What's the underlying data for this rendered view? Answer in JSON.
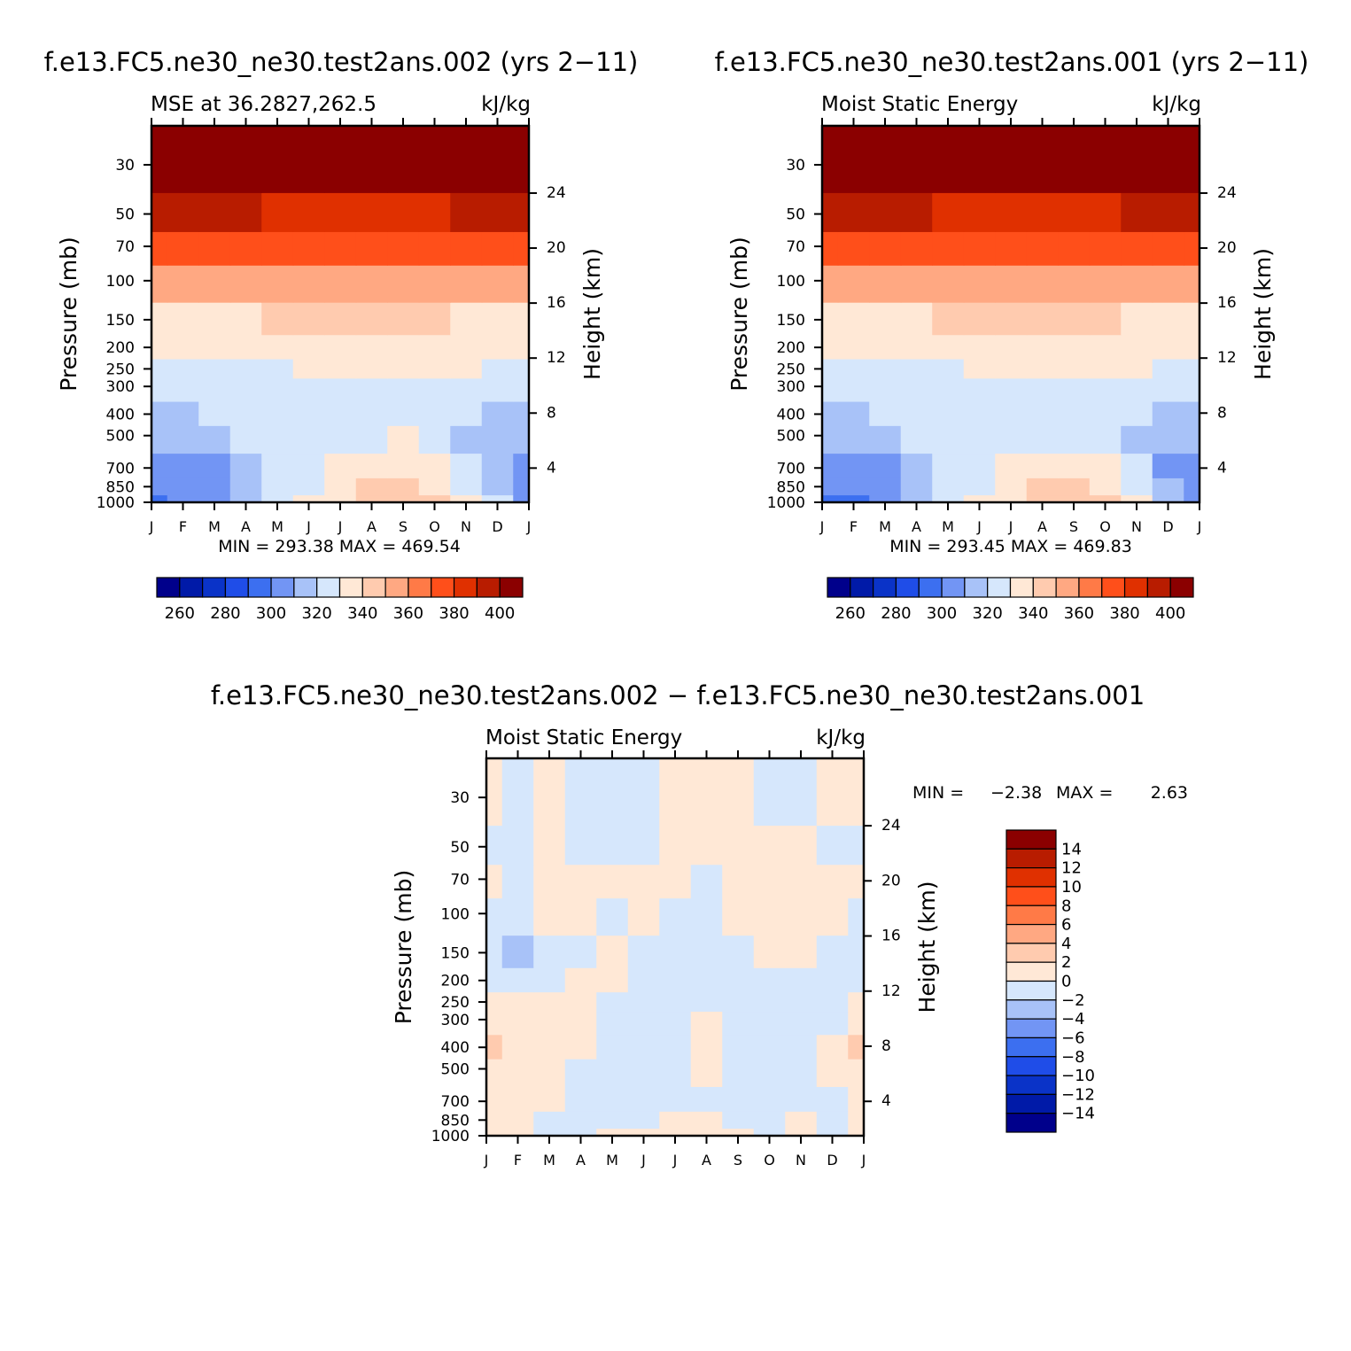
{
  "colors": {
    "mse_palette": [
      "#00008b",
      "#001aa8",
      "#0a33c8",
      "#1f4de8",
      "#3c6ff0",
      "#7295f4",
      "#a8c2f8",
      "#d6e7fc",
      "#ffe8d6",
      "#ffcbaf",
      "#ffa882",
      "#ff7a47",
      "#ff4f1a",
      "#e03000",
      "#b81c00",
      "#8b0000"
    ],
    "diff_palette": [
      "#00008b",
      "#001aa8",
      "#0a33c8",
      "#1f4de8",
      "#3c6ff0",
      "#7295f4",
      "#a8c2f8",
      "#d6e7fc",
      "#ffe8d6",
      "#ffcbaf",
      "#ffa882",
      "#ff7a47",
      "#ff4f1a",
      "#e03000",
      "#b81c00",
      "#8b0000"
    ]
  },
  "chart_data": [
    {
      "type": "heatmap",
      "title": "f.e13.FC5.ne30_ne30.test2ans.002 (yrs 2−11)",
      "subtitle_left": "MSE at 36.2827,262.5",
      "subtitle_right": "kJ/kg",
      "xlabel": "",
      "ylabel": "Pressure (mb)",
      "ylabel_right": "Height (km)",
      "x_ticklabels": [
        "J",
        "F",
        "M",
        "A",
        "M",
        "J",
        "J",
        "A",
        "S",
        "O",
        "N",
        "D",
        "J"
      ],
      "y_ticks": [
        30,
        50,
        70,
        100,
        150,
        200,
        250,
        300,
        400,
        500,
        700,
        850,
        1000
      ],
      "y_ticklabels": [
        "30",
        "50",
        "70",
        "100",
        "150",
        "200",
        "250",
        "300",
        "400",
        "500",
        "700",
        "850",
        "1000"
      ],
      "height_ticks": [
        4,
        8,
        12,
        16,
        20,
        24
      ],
      "height_ticklabels": [
        "4",
        "8",
        "12",
        "16",
        "20",
        "24"
      ],
      "ylim": [
        1000,
        20
      ],
      "min_max_text": "MIN = 293.38 MAX = 469.54",
      "min": 293.38,
      "max": 469.54,
      "colorbar": {
        "orientation": "horizontal",
        "levels": [
          260,
          270,
          280,
          290,
          300,
          310,
          320,
          330,
          340,
          350,
          360,
          370,
          380,
          390,
          400
        ],
        "labels": [
          "260",
          "280",
          "300",
          "320",
          "340",
          "360",
          "380",
          "400"
        ]
      },
      "months": [
        "J",
        "F",
        "M",
        "A",
        "M",
        "J",
        "J",
        "A",
        "S",
        "O",
        "N",
        "D",
        "J"
      ],
      "levels_mb": [
        1000,
        850,
        700,
        500,
        400,
        300,
        250,
        200,
        150,
        100,
        70,
        50,
        30,
        20
      ],
      "values": [
        [
          298,
          300,
          304,
          316,
          324,
          330,
          338,
          346,
          348,
          346,
          338,
          322,
          306,
          298
        ],
        [
          300,
          302,
          306,
          316,
          322,
          328,
          334,
          340,
          342,
          338,
          328,
          314,
          304,
          300
        ],
        [
          305,
          306,
          308,
          316,
          320,
          325,
          330,
          335,
          337,
          333,
          322,
          310,
          306,
          305
        ],
        [
          312,
          314,
          316,
          320,
          322,
          324,
          327,
          329,
          330,
          328,
          318,
          314,
          314,
          312
        ],
        [
          317,
          318,
          320,
          322,
          324,
          325,
          326,
          327,
          327,
          326,
          320,
          318,
          318,
          317
        ],
        [
          323,
          324,
          325,
          326,
          327,
          328,
          328,
          329,
          329,
          328,
          326,
          325,
          324,
          323
        ],
        [
          327,
          327,
          328,
          329,
          329,
          330,
          331,
          332,
          332,
          331,
          330,
          329,
          328,
          327
        ],
        [
          330,
          330,
          331,
          331,
          332,
          333,
          335,
          337,
          336,
          334,
          332,
          331,
          331,
          330
        ],
        [
          336,
          337,
          338,
          339,
          340,
          342,
          345,
          347,
          345,
          342,
          339,
          338,
          337,
          336
        ],
        [
          352,
          352,
          353,
          353,
          354,
          354,
          355,
          356,
          355,
          354,
          353,
          352,
          352,
          352
        ],
        [
          372,
          372,
          372,
          372,
          371,
          370,
          370,
          370,
          370,
          371,
          372,
          372,
          373,
          372
        ],
        [
          395,
          394,
          392,
          391,
          389,
          387,
          386,
          386,
          387,
          389,
          391,
          393,
          395,
          395
        ],
        [
          430,
          430,
          430,
          430,
          430,
          430,
          430,
          430,
          430,
          430,
          430,
          430,
          430,
          430
        ],
        [
          460,
          460,
          460,
          460,
          460,
          460,
          460,
          460,
          460,
          460,
          460,
          460,
          460,
          460
        ]
      ]
    },
    {
      "type": "heatmap",
      "title": "f.e13.FC5.ne30_ne30.test2ans.001 (yrs 2−11)",
      "subtitle_left": "Moist Static Energy",
      "subtitle_right": "kJ/kg",
      "xlabel": "",
      "ylabel": "Pressure (mb)",
      "ylabel_right": "Height (km)",
      "x_ticklabels": [
        "J",
        "F",
        "M",
        "A",
        "M",
        "J",
        "J",
        "A",
        "S",
        "O",
        "N",
        "D",
        "J"
      ],
      "y_ticks": [
        30,
        50,
        70,
        100,
        150,
        200,
        250,
        300,
        400,
        500,
        700,
        850,
        1000
      ],
      "y_ticklabels": [
        "30",
        "50",
        "70",
        "100",
        "150",
        "200",
        "250",
        "300",
        "400",
        "500",
        "700",
        "850",
        "1000"
      ],
      "height_ticks": [
        4,
        8,
        12,
        16,
        20,
        24
      ],
      "height_ticklabels": [
        "4",
        "8",
        "12",
        "16",
        "20",
        "24"
      ],
      "ylim": [
        1000,
        20
      ],
      "min_max_text": "MIN = 293.45 MAX = 469.83",
      "min": 293.45,
      "max": 469.83,
      "colorbar": {
        "orientation": "horizontal",
        "levels": [
          260,
          270,
          280,
          290,
          300,
          310,
          320,
          330,
          340,
          350,
          360,
          370,
          380,
          390,
          400
        ],
        "labels": [
          "260",
          "280",
          "300",
          "320",
          "340",
          "360",
          "380",
          "400"
        ]
      },
      "months": [
        "J",
        "F",
        "M",
        "A",
        "M",
        "J",
        "J",
        "A",
        "S",
        "O",
        "N",
        "D",
        "J"
      ],
      "levels_mb": [
        1000,
        850,
        700,
        500,
        400,
        300,
        250,
        200,
        150,
        100,
        70,
        50,
        30,
        20
      ],
      "values": [
        [
          298,
          299,
          302,
          316,
          324,
          330,
          338,
          345,
          347,
          345,
          334,
          318,
          304,
          298
        ],
        [
          300,
          302,
          306,
          316,
          322,
          328,
          334,
          340,
          341,
          337,
          326,
          312,
          304,
          300
        ],
        [
          305,
          306,
          308,
          316,
          320,
          325,
          330,
          335,
          336,
          332,
          320,
          309,
          306,
          305
        ],
        [
          312,
          314,
          316,
          320,
          322,
          324,
          327,
          329,
          329,
          327,
          317,
          313,
          313,
          312
        ],
        [
          317,
          318,
          320,
          322,
          324,
          325,
          326,
          327,
          327,
          326,
          320,
          318,
          318,
          317
        ],
        [
          323,
          324,
          325,
          326,
          327,
          328,
          328,
          329,
          329,
          328,
          326,
          325,
          324,
          323
        ],
        [
          327,
          327,
          328,
          329,
          329,
          330,
          331,
          332,
          332,
          331,
          330,
          329,
          328,
          327
        ],
        [
          330,
          330,
          331,
          331,
          332,
          333,
          335,
          337,
          336,
          334,
          332,
          331,
          331,
          330
        ],
        [
          336,
          337,
          338,
          339,
          340,
          342,
          345,
          347,
          345,
          342,
          339,
          338,
          337,
          336
        ],
        [
          352,
          352,
          353,
          353,
          354,
          354,
          355,
          356,
          355,
          354,
          353,
          352,
          352,
          352
        ],
        [
          372,
          372,
          372,
          372,
          371,
          370,
          370,
          370,
          370,
          371,
          372,
          372,
          373,
          372
        ],
        [
          395,
          394,
          392,
          391,
          389,
          387,
          386,
          386,
          387,
          389,
          391,
          393,
          395,
          395
        ],
        [
          430,
          430,
          430,
          430,
          430,
          430,
          430,
          430,
          430,
          430,
          430,
          430,
          430,
          430
        ],
        [
          460,
          460,
          460,
          460,
          460,
          460,
          460,
          460,
          460,
          460,
          460,
          460,
          460,
          460
        ]
      ]
    },
    {
      "type": "heatmap",
      "title": "f.e13.FC5.ne30_ne30.test2ans.002 − f.e13.FC5.ne30_ne30.test2ans.001",
      "subtitle_left": "Moist Static Energy",
      "subtitle_right": "kJ/kg",
      "xlabel": "",
      "ylabel": "Pressure (mb)",
      "ylabel_right": "Height (km)",
      "x_ticklabels": [
        "J",
        "F",
        "M",
        "A",
        "M",
        "J",
        "J",
        "A",
        "S",
        "O",
        "N",
        "D",
        "J"
      ],
      "y_ticks": [
        30,
        50,
        70,
        100,
        150,
        200,
        250,
        300,
        400,
        500,
        700,
        850,
        1000
      ],
      "y_ticklabels": [
        "30",
        "50",
        "70",
        "100",
        "150",
        "200",
        "250",
        "300",
        "400",
        "500",
        "700",
        "850",
        "1000"
      ],
      "height_ticks": [
        4,
        8,
        12,
        16,
        20,
        24
      ],
      "height_ticklabels": [
        "4",
        "8",
        "12",
        "16",
        "20",
        "24"
      ],
      "ylim": [
        1000,
        20
      ],
      "min_label": "MIN =",
      "min_value_text": "−2.38",
      "max_label": "MAX =",
      "max_value_text": "2.63",
      "min": -2.38,
      "max": 2.63,
      "colorbar": {
        "orientation": "vertical",
        "levels": [
          -14,
          -12,
          -10,
          -8,
          -6,
          -4,
          -2,
          0,
          2,
          4,
          6,
          8,
          10,
          12,
          14
        ],
        "labels": [
          "14",
          "12",
          "10",
          "8",
          "6",
          "4",
          "2",
          "0",
          "−2",
          "−4",
          "−6",
          "−8",
          "−10",
          "−12",
          "−14"
        ]
      },
      "months": [
        "J",
        "F",
        "M",
        "A",
        "M",
        "J",
        "J",
        "A",
        "S",
        "O",
        "N",
        "D",
        "J"
      ],
      "levels_mb": [
        1000,
        850,
        700,
        500,
        400,
        300,
        250,
        200,
        150,
        100,
        70,
        50,
        30,
        20
      ],
      "values": [
        [
          0.3,
          0.5,
          -0.3,
          -0.2,
          0.4,
          0.4,
          0.3,
          0.2,
          0.3,
          -0.3,
          0.5,
          -0.2,
          0.3,
          0.3
        ],
        [
          1.8,
          1.5,
          -0.4,
          -0.5,
          -0.2,
          -0.5,
          0.2,
          0.5,
          -0.4,
          -0.5,
          0.2,
          -0.3,
          1.8,
          1.8
        ],
        [
          1.9,
          1.2,
          0.4,
          -0.5,
          -0.6,
          -0.3,
          -0.5,
          -0.3,
          -0.5,
          -0.6,
          -0.2,
          -0.4,
          1.9,
          1.9
        ],
        [
          1.2,
          1.0,
          0.6,
          -0.5,
          -0.4,
          -0.5,
          -0.6,
          0.6,
          -0.4,
          -0.5,
          -0.4,
          0.4,
          1.2,
          1.2
        ],
        [
          2.1,
          0.8,
          0.5,
          0.3,
          -0.5,
          -0.4,
          -0.6,
          0.7,
          -0.5,
          -0.6,
          -0.5,
          0.3,
          2.1,
          2.1
        ],
        [
          0.8,
          0.9,
          0.6,
          0.5,
          -0.6,
          -0.5,
          -0.6,
          0.5,
          -0.4,
          -0.7,
          -0.5,
          -0.4,
          0.8,
          0.8
        ],
        [
          0.4,
          0.5,
          0.4,
          0.4,
          -0.5,
          -0.6,
          -0.7,
          -0.3,
          -0.5,
          -0.6,
          -0.5,
          -0.3,
          0.4,
          0.4
        ],
        [
          -0.2,
          -0.3,
          -0.5,
          0.4,
          0.4,
          -0.4,
          -0.5,
          -0.6,
          -0.5,
          -0.6,
          -0.5,
          -0.4,
          -0.2,
          -0.2
        ],
        [
          -0.5,
          -2.2,
          -0.7,
          -0.4,
          0.6,
          -0.5,
          -0.6,
          -0.7,
          -0.5,
          0.5,
          0.4,
          -0.3,
          -0.5,
          -0.5
        ],
        [
          -0.3,
          -0.5,
          0.5,
          0.6,
          -1.0,
          0.4,
          -0.5,
          -0.6,
          0.5,
          0.6,
          0.5,
          0.5,
          -0.3,
          -0.3
        ],
        [
          0.4,
          -0.4,
          0.6,
          0.7,
          0.5,
          0.6,
          0.5,
          -0.5,
          0.6,
          0.7,
          0.6,
          0.5,
          0.4,
          0.4
        ],
        [
          -0.4,
          -0.5,
          0.5,
          -0.4,
          -0.5,
          -0.6,
          0.5,
          0.6,
          0.7,
          0.5,
          0.4,
          -0.3,
          -0.4,
          -0.4
        ],
        [
          0.3,
          -0.4,
          0.6,
          -0.5,
          -0.6,
          -0.5,
          0.5,
          0.6,
          0.5,
          -0.4,
          -0.5,
          0.4,
          0.3,
          0.3
        ],
        [
          0.4,
          -0.3,
          0.5,
          -0.5,
          -0.6,
          -0.5,
          0.6,
          0.6,
          0.5,
          -0.4,
          -0.5,
          0.4,
          0.4,
          0.4
        ]
      ]
    }
  ]
}
